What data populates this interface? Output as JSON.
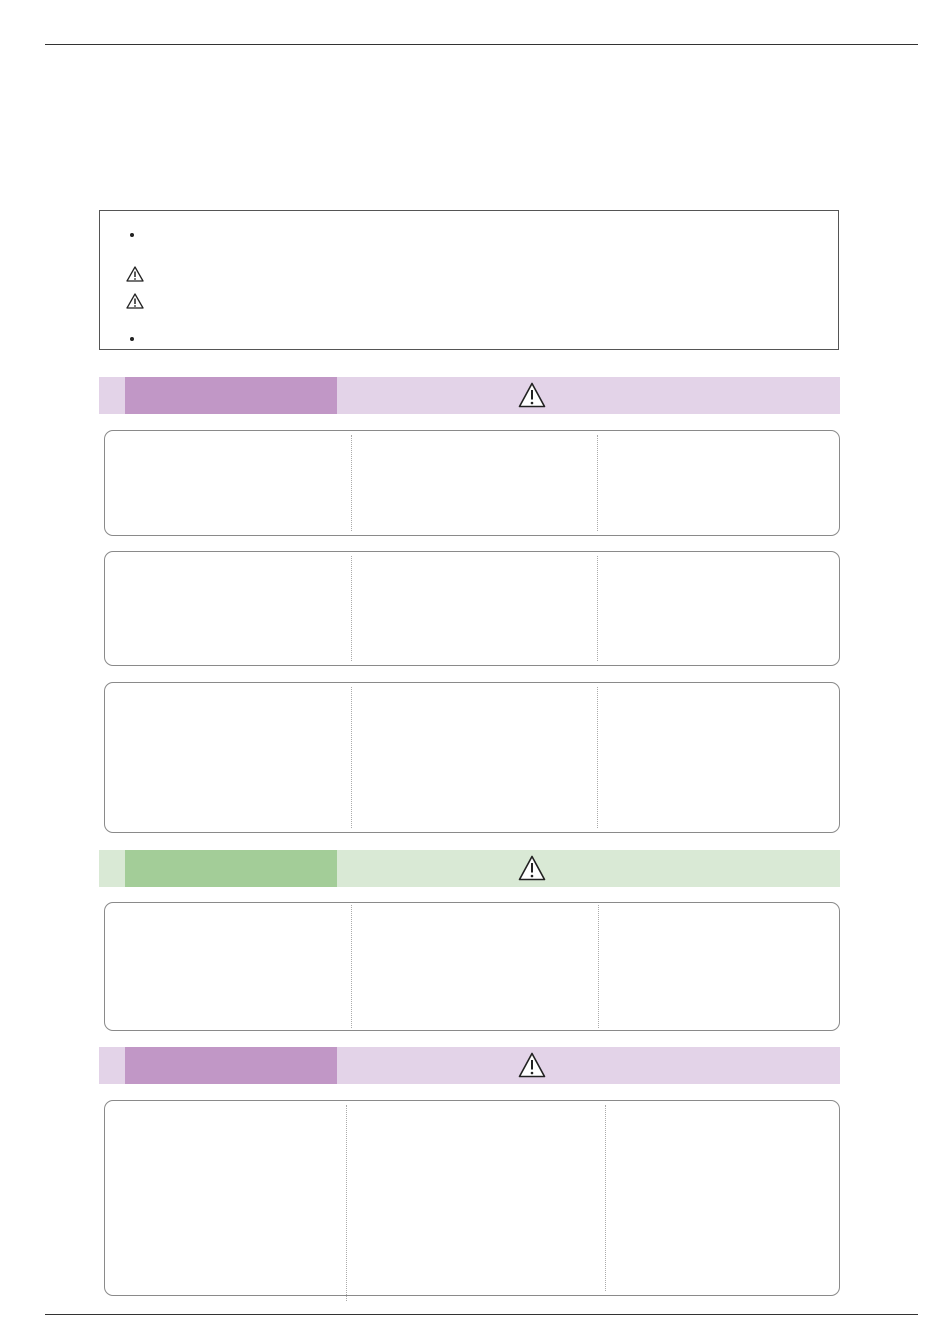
{
  "colors": {
    "rule": "#333333",
    "purple_band_light": "#e3d3e8",
    "purple_band_tab": "#c197c6",
    "green_band_light": "#d9e9d5",
    "green_band_tab": "#a3cd98",
    "panel_border": "#8a8a8a"
  },
  "icons": {
    "notice_bullet_1": "bullet-dot",
    "notice_warning_1": "warning-triangle-icon",
    "notice_warning_2": "warning-triangle-icon",
    "notice_bullet_2": "bullet-dot",
    "section_1_symbol": "warning-triangle-icon",
    "section_2_symbol": "warning-triangle-icon",
    "section_3_symbol": "warning-triangle-icon"
  },
  "sections": [
    {
      "theme": "purple",
      "panel_count": 3
    },
    {
      "theme": "green",
      "panel_count": 1
    },
    {
      "theme": "purple",
      "panel_count": 1
    }
  ]
}
